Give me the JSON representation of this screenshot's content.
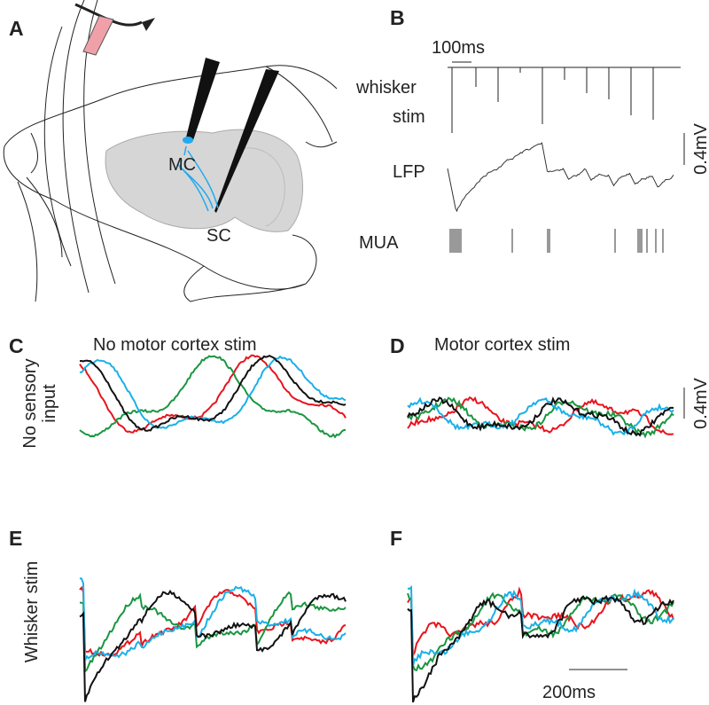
{
  "panels": {
    "A": {
      "label": "A",
      "regions": [
        "MC",
        "SC"
      ]
    },
    "B": {
      "label": "B",
      "time_scale": "100ms",
      "stim_label": [
        "whisker",
        "stim"
      ],
      "lfp_label": "LFP",
      "mua_label": "MUA",
      "voltage_scale": "0.4mV"
    },
    "C": {
      "label": "C",
      "title": "No motor cortex stim",
      "row_label": [
        "No sensory",
        "input"
      ]
    },
    "D": {
      "label": "D",
      "title": "Motor cortex stim",
      "voltage_scale": "0.4mV"
    },
    "E": {
      "label": "E",
      "row_label": "Whisker stim"
    },
    "F": {
      "label": "F",
      "time_scale": "200ms"
    }
  }
}
